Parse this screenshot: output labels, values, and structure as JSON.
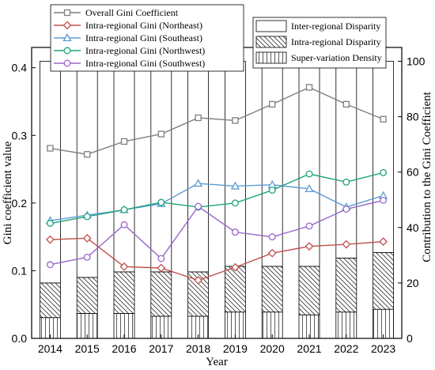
{
  "chart_data": {
    "type": "line",
    "x_label": "Year",
    "y_label_left": "Gini coefficient value",
    "y_label_right": "Contribution to the Gini Coefficient",
    "categories": [
      "2014",
      "2015",
      "2016",
      "2017",
      "2018",
      "2019",
      "2020",
      "2021",
      "2022",
      "2023"
    ],
    "ylim_left": [
      0,
      0.43
    ],
    "ylim_right": [
      0,
      105
    ],
    "left_ticks": [
      "0.0",
      "0.1",
      "0.2",
      "0.3",
      "0.4"
    ],
    "right_ticks": [
      "0",
      "20",
      "40",
      "60",
      "80",
      "100"
    ],
    "line_series": [
      {
        "name": "Overall Gini Coefficient",
        "color": "#7f7f7f",
        "marker": "square",
        "values": [
          0.281,
          0.272,
          0.291,
          0.302,
          0.326,
          0.322,
          0.346,
          0.371,
          0.346,
          0.324
        ]
      },
      {
        "name": "Intra-regional Gini (Northeast)",
        "color": "#c0504d",
        "marker": "diamond",
        "values": [
          0.146,
          0.148,
          0.106,
          0.104,
          0.086,
          0.105,
          0.126,
          0.136,
          0.139,
          0.143
        ]
      },
      {
        "name": "Intra-regional Gini (Southeast)",
        "color": "#5b9bd5",
        "marker": "triangle",
        "values": [
          0.174,
          0.182,
          0.19,
          0.199,
          0.229,
          0.225,
          0.227,
          0.221,
          0.194,
          0.211
        ]
      },
      {
        "name": "Intra-regional Gini (Northwest)",
        "color": "#1fa37a",
        "marker": "circle",
        "values": [
          0.17,
          0.18,
          0.19,
          0.201,
          0.194,
          0.2,
          0.219,
          0.243,
          0.231,
          0.245
        ]
      },
      {
        "name": "Intra-regional Gini (Southwest)",
        "color": "#9966cc",
        "marker": "circle",
        "values": [
          0.109,
          0.12,
          0.168,
          0.118,
          0.195,
          0.157,
          0.15,
          0.166,
          0.191,
          0.204
        ]
      }
    ],
    "bar_series": [
      {
        "name": "Inter-regional Disparity",
        "pattern": "plain",
        "values": [
          80,
          78,
          76,
          76,
          76,
          74,
          74,
          74,
          71,
          69
        ]
      },
      {
        "name": "Intra-regional Disparity",
        "pattern": "diagonal",
        "values": [
          12.5,
          13.0,
          15.0,
          16.0,
          16.0,
          16.5,
          16.5,
          17.5,
          19.5,
          20.5
        ]
      },
      {
        "name": "Super-variation Density",
        "pattern": "vertical",
        "values": [
          7.5,
          9.0,
          9.0,
          8.0,
          8.0,
          9.5,
          9.5,
          8.5,
          9.5,
          10.5
        ]
      }
    ],
    "line_legend_placement": "top-left",
    "bar_legend_placement": "top-right"
  }
}
